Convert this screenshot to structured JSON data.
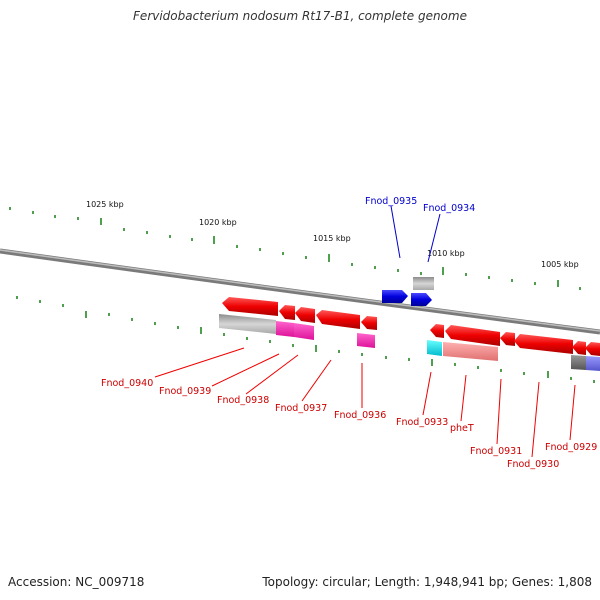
{
  "title": "Fervidobacterium nodosum Rt17-B1, complete genome",
  "footer": {
    "accession": "Accession: NC_009718",
    "summary": "Topology: circular; Length: 1,948,941 bp; Genes: 1,808"
  },
  "colors": {
    "forward_gene": "#0000cc",
    "reverse_gene": "#ee0000",
    "tick": "#228822",
    "backbone": "#888888"
  },
  "scale_labels": [
    "1025 kbp",
    "1020 kbp",
    "1015 kbp",
    "1010 kbp",
    "1005 kbp"
  ],
  "forward_labels": [
    "Fnod_0935",
    "Fnod_0934"
  ],
  "reverse_labels": [
    "Fnod_0940",
    "Fnod_0939",
    "Fnod_0938",
    "Fnod_0937",
    "Fnod_0936",
    "Fnod_0933",
    "pheT",
    "Fnod_0931",
    "Fnod_0930",
    "Fnod_0929"
  ]
}
